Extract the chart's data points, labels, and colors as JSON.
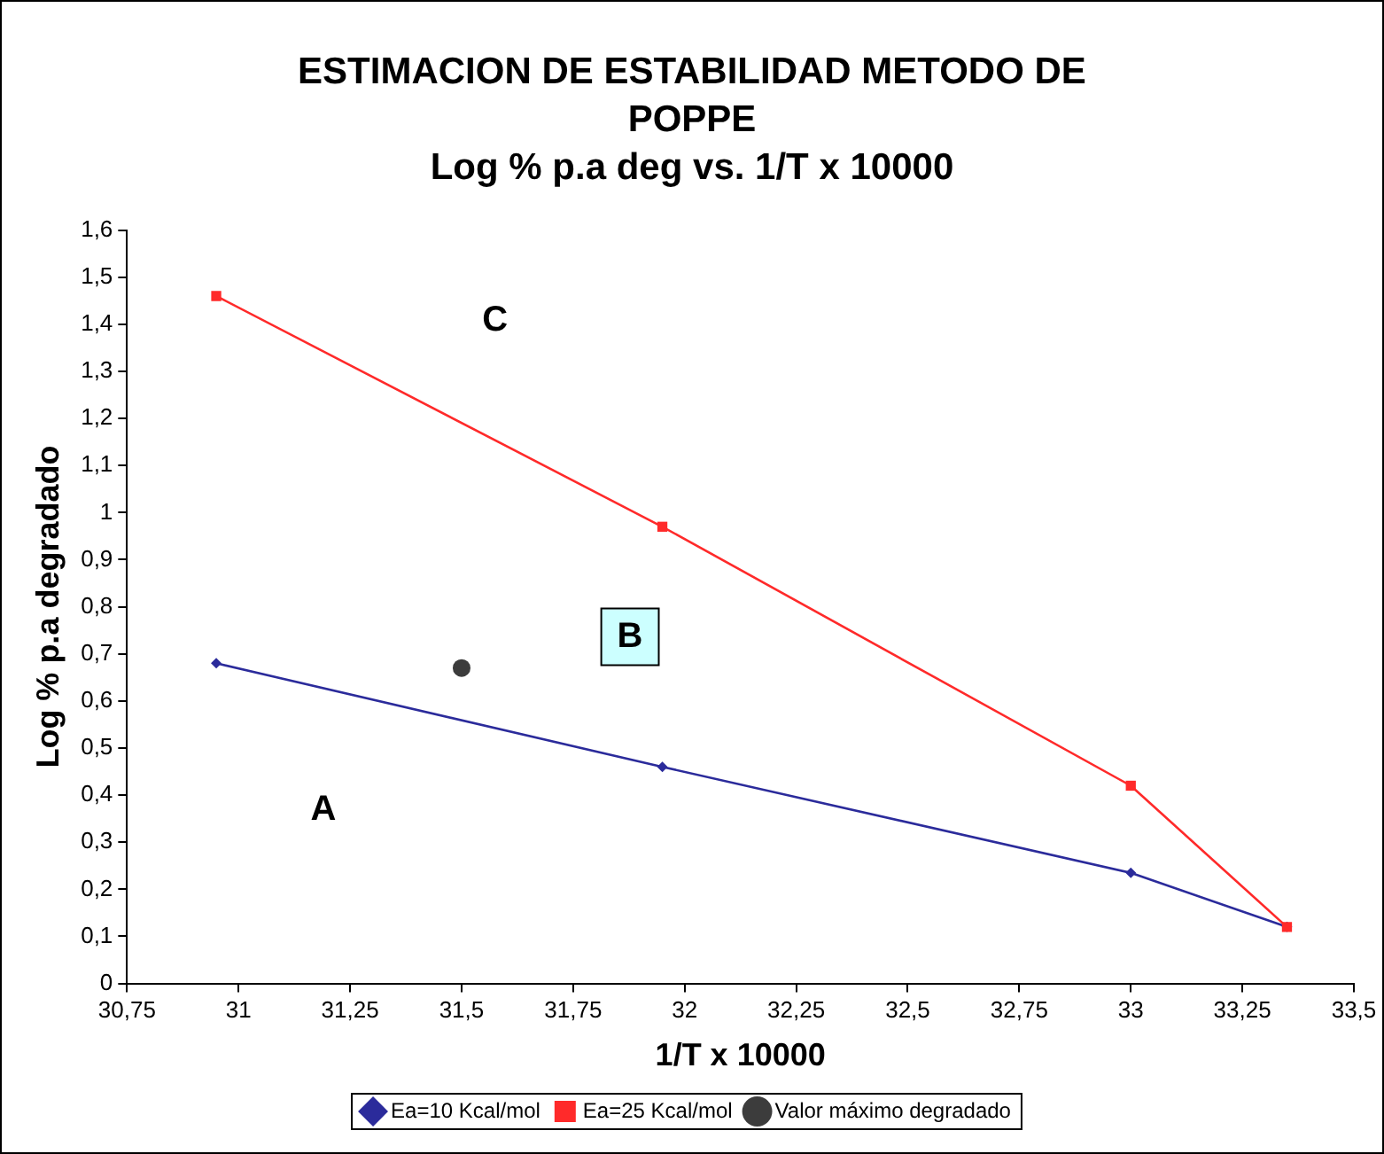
{
  "chart_data": {
    "type": "line",
    "title": "ESTIMACION DE ESTABILIDAD METODO DE POPPE",
    "subtitle": "Log % p.a deg  vs.  1/T x 10000",
    "xlabel": "1/T x 10000",
    "ylabel": "Log % p.a degradado",
    "x": [
      30.95,
      31.95,
      33.0,
      33.35
    ],
    "series": [
      {
        "name": "Ea=10 Kcal/mol",
        "type": "line",
        "color": "#2b2b9b",
        "marker": "diamond",
        "values": [
          0.68,
          0.46,
          0.235,
          0.12
        ]
      },
      {
        "name": "Ea=25 Kcal/mol",
        "type": "line",
        "color": "#ff2a2a",
        "marker": "square",
        "values": [
          1.46,
          0.97,
          0.42,
          0.12
        ]
      },
      {
        "name": "Valor máximo degradado",
        "type": "scatter",
        "color": "#3c3c3c",
        "marker": "circle",
        "x": [
          31.5
        ],
        "values": [
          0.67
        ]
      }
    ],
    "xlim": [
      30.75,
      33.5
    ],
    "xticks": [
      {
        "value": 30.75,
        "label": "30,75"
      },
      {
        "value": 31,
        "label": "31"
      },
      {
        "value": 31.25,
        "label": "31,25"
      },
      {
        "value": 31.5,
        "label": "31,5"
      },
      {
        "value": 31.75,
        "label": "31,75"
      },
      {
        "value": 32,
        "label": "32"
      },
      {
        "value": 32.25,
        "label": "32,25"
      },
      {
        "value": 32.5,
        "label": "32,5"
      },
      {
        "value": 32.75,
        "label": "32,75"
      },
      {
        "value": 33,
        "label": "33"
      },
      {
        "value": 33.25,
        "label": "33,25"
      },
      {
        "value": 33.5,
        "label": "33,5"
      }
    ],
    "ylim": [
      0,
      1.6
    ],
    "yticks": [
      0,
      {
        "value": 0.1,
        "label": "0,1"
      },
      {
        "value": 0.2,
        "label": "0,2"
      },
      {
        "value": 0.3,
        "label": "0,3"
      },
      {
        "value": 0.4,
        "label": "0,4"
      },
      {
        "value": 0.5,
        "label": "0,5"
      },
      {
        "value": 0.6,
        "label": "0,6"
      },
      {
        "value": 0.7,
        "label": "0,7"
      },
      {
        "value": 0.8,
        "label": "0,8"
      },
      {
        "value": 0.9,
        "label": "0,9"
      },
      1,
      {
        "value": 1.1,
        "label": "1,1"
      },
      {
        "value": 1.2,
        "label": "1,2"
      },
      {
        "value": 1.3,
        "label": "1,3"
      },
      {
        "value": 1.4,
        "label": "1,4"
      },
      {
        "value": 1.5,
        "label": "1,5"
      },
      {
        "value": 1.6,
        "label": "1,6"
      }
    ],
    "annotations": [
      "C",
      "B",
      "A"
    ],
    "grid": false,
    "legend": "bottom"
  }
}
